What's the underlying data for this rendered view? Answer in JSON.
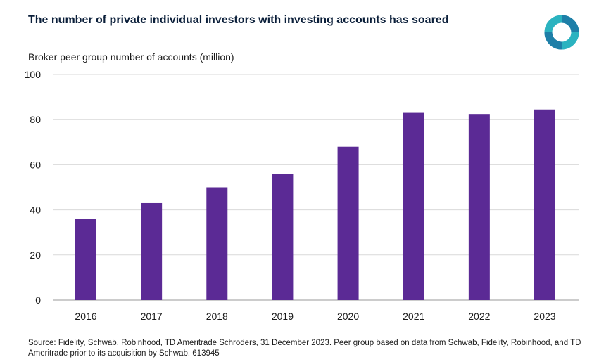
{
  "title": "The number of private individual investors with investing accounts has soared",
  "ylabel": "Broker peer group number of accounts (million)",
  "source": "Source: Fidelity, Schwab, Robinhood, TD Ameritrade Schroders, 31 December 2023. Peer group based on data from Schwab, Fidelity, Robinhood, and TD Ameritrade prior to its acquisition by Schwab. 613945",
  "logo": {
    "icon": "schroders-logo-icon",
    "colors": [
      "#2bb3c0",
      "#1e7fa8"
    ]
  },
  "colors": {
    "bar": "#5b2a95",
    "grid": "#d9d9d9",
    "text": "#1a1a1a",
    "title": "#0b1f3a"
  },
  "chart_data": {
    "type": "bar",
    "categories": [
      "2016",
      "2017",
      "2018",
      "2019",
      "2020",
      "2021",
      "2022",
      "2023"
    ],
    "values": [
      36,
      43,
      50,
      56,
      68,
      83,
      82.5,
      84.5
    ],
    "title": "The number of private individual investors with investing accounts has soared",
    "xlabel": "",
    "ylabel": "Broker peer group number of accounts (million)",
    "ylim": [
      0,
      100
    ],
    "yticks": [
      0,
      20,
      40,
      60,
      80,
      100
    ],
    "grid": true,
    "legend": "none"
  }
}
